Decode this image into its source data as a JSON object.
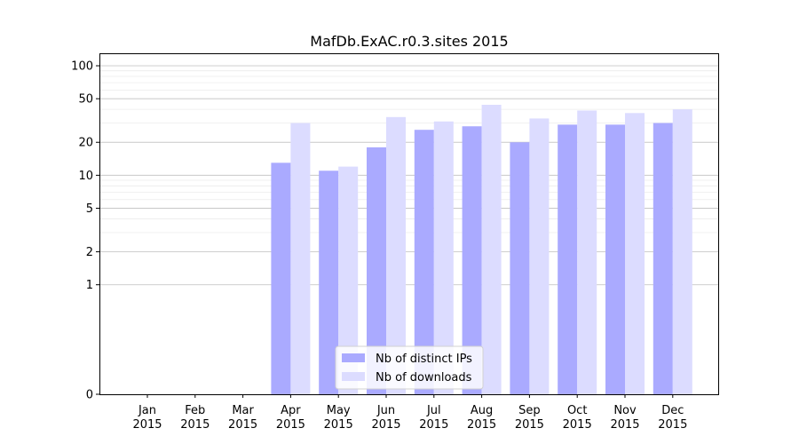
{
  "chart_data": {
    "type": "bar",
    "title": "MafDb.ExAC.r0.3.sites 2015",
    "xlabel": "",
    "ylabel": "",
    "y_scale": "symlog",
    "ylim": [
      0,
      130
    ],
    "y_ticks": [
      0,
      1,
      2,
      5,
      10,
      20,
      50,
      100
    ],
    "grid": "horizontal",
    "legend_position": "bottom-center",
    "categories": [
      [
        "Jan",
        "2015"
      ],
      [
        "Feb",
        "2015"
      ],
      [
        "Mar",
        "2015"
      ],
      [
        "Apr",
        "2015"
      ],
      [
        "May",
        "2015"
      ],
      [
        "Jun",
        "2015"
      ],
      [
        "Jul",
        "2015"
      ],
      [
        "Aug",
        "2015"
      ],
      [
        "Sep",
        "2015"
      ],
      [
        "Oct",
        "2015"
      ],
      [
        "Nov",
        "2015"
      ],
      [
        "Dec",
        "2015"
      ]
    ],
    "series": [
      {
        "name": "Nb of distinct IPs",
        "color": "#aaaaff",
        "values": [
          0,
          0,
          0,
          13,
          11,
          18,
          26,
          28,
          20,
          29,
          29,
          30
        ]
      },
      {
        "name": "Nb of downloads",
        "color": "#dcdcff",
        "values": [
          0,
          0,
          0,
          30,
          12,
          34,
          31,
          44,
          33,
          39,
          37,
          40
        ]
      }
    ]
  }
}
